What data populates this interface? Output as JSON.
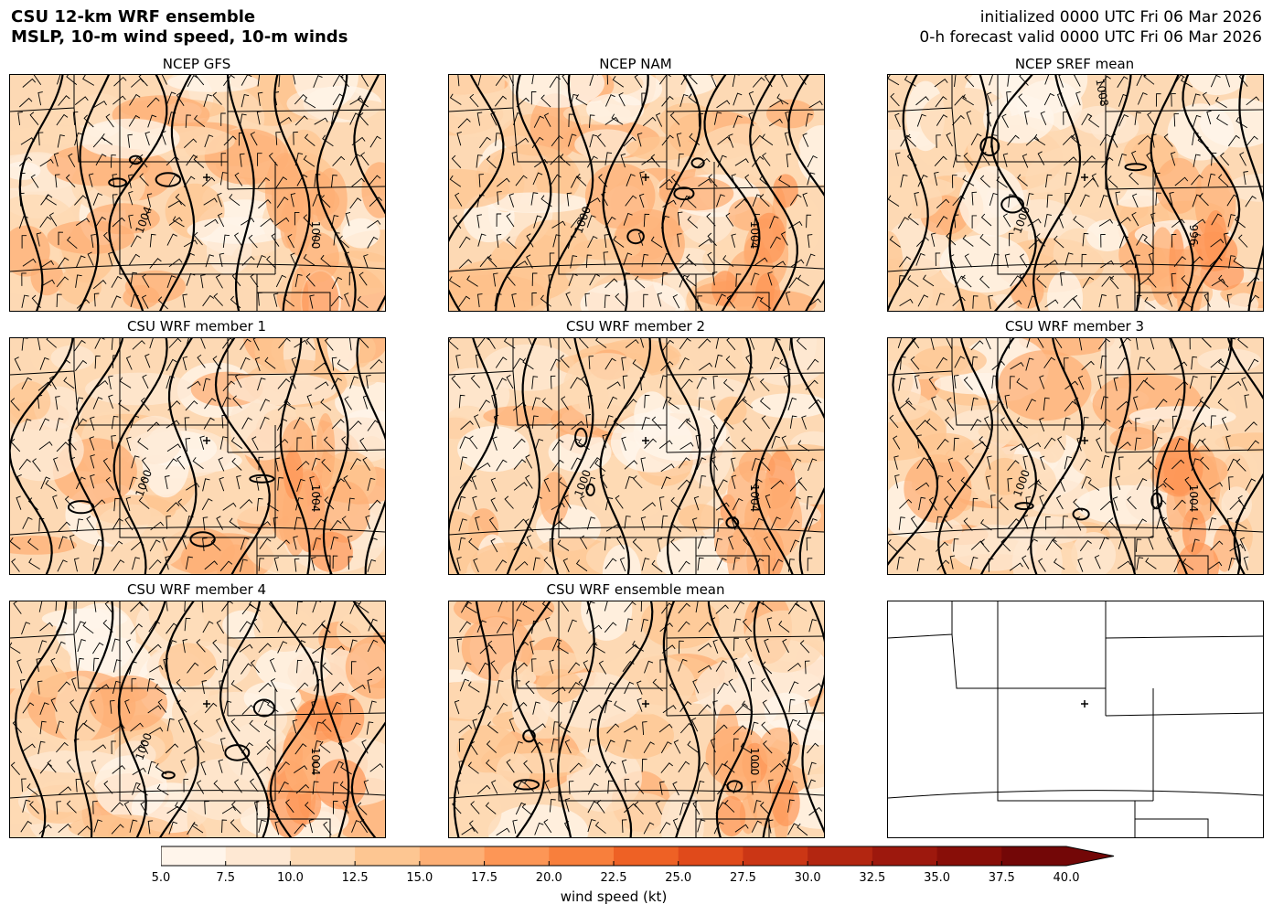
{
  "header": {
    "title_line1": "CSU 12-km WRF ensemble",
    "title_line2": "MSLP, 10-m wind speed, 10-m winds",
    "init_line": "initialized 0000 UTC Fri 06 Mar 2026",
    "valid_line": "0-h forecast valid 0000 UTC Fri 06 Mar 2026"
  },
  "panels": [
    {
      "title": "NCEP GFS",
      "labels": [
        "1000",
        "1004"
      ]
    },
    {
      "title": "NCEP NAM",
      "labels": [
        "1004",
        "1000"
      ]
    },
    {
      "title": "NCEP SREF mean",
      "labels": [
        "996",
        "1000",
        "1008"
      ]
    },
    {
      "title": "CSU WRF member 1",
      "labels": [
        "1004",
        "1000"
      ]
    },
    {
      "title": "CSU WRF member 2",
      "labels": [
        "1004",
        "1000"
      ]
    },
    {
      "title": "CSU WRF member 3",
      "labels": [
        "1004",
        "1000"
      ]
    },
    {
      "title": "CSU WRF member 4",
      "labels": [
        "1004",
        "1000"
      ]
    },
    {
      "title": "CSU WRF ensemble mean",
      "labels": [
        "1000"
      ]
    },
    {
      "title": "",
      "labels": []
    }
  ],
  "colorbar": {
    "label": "wind speed (kt)",
    "ticks": [
      "5.0",
      "7.5",
      "10.0",
      "12.5",
      "15.0",
      "17.5",
      "20.0",
      "22.5",
      "25.0",
      "27.5",
      "30.0",
      "32.5",
      "35.0",
      "37.5",
      "40.0"
    ],
    "colors": [
      "#fff5eb",
      "#fee8d3",
      "#fdd9b4",
      "#fdc692",
      "#fdaf75",
      "#fd9656",
      "#f87f3c",
      "#ee6125",
      "#e04a1b",
      "#cb3615",
      "#b32611",
      "#9d180d",
      "#880e08",
      "#730707"
    ]
  }
}
